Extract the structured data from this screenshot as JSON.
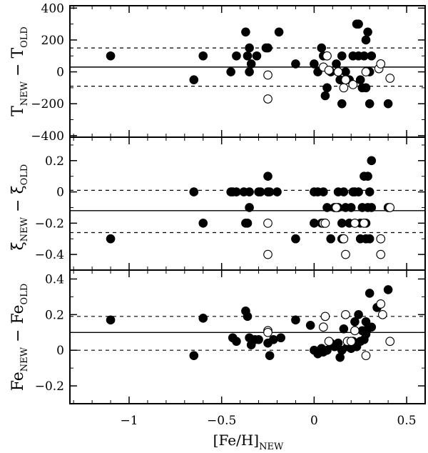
{
  "chart_data": {
    "type": "scatter",
    "xlabel": {
      "main": "[Fe/H]",
      "sub": "NEW"
    },
    "xlim": [
      -1.32,
      0.6
    ],
    "xticks": [
      -1,
      -0.5,
      0,
      0.5
    ],
    "xtick_labels": [
      "−1",
      "−0.5",
      "0",
      "0.5"
    ],
    "panels": [
      {
        "ylabel": {
          "a": "T",
          "a_sub": "NEW",
          "mid": " − T",
          "b_sub": "OLD"
        },
        "ylim": [
          -410,
          415
        ],
        "yticks": [
          -400,
          -200,
          0,
          200,
          400
        ],
        "ytick_labels": [
          "−400",
          "−200",
          "0",
          "200",
          "400"
        ],
        "mean_line": 30,
        "dashed_lines": [
          150,
          -90
        ],
        "filled": [
          [
            -1.1,
            100
          ],
          [
            -0.65,
            -50
          ],
          [
            -0.6,
            100
          ],
          [
            -0.45,
            0
          ],
          [
            -0.42,
            100
          ],
          [
            -0.37,
            250
          ],
          [
            -0.36,
            100
          ],
          [
            -0.35,
            150
          ],
          [
            -0.35,
            0
          ],
          [
            -0.34,
            50
          ],
          [
            -0.31,
            100
          ],
          [
            -0.26,
            150
          ],
          [
            -0.25,
            150
          ],
          [
            -0.19,
            250
          ],
          [
            -0.1,
            50
          ],
          [
            0.0,
            50
          ],
          [
            0.02,
            0
          ],
          [
            0.04,
            150
          ],
          [
            0.05,
            100
          ],
          [
            0.06,
            -150
          ],
          [
            0.07,
            -100
          ],
          [
            0.09,
            0
          ],
          [
            0.12,
            50
          ],
          [
            0.13,
            0
          ],
          [
            0.14,
            -50
          ],
          [
            0.15,
            -200
          ],
          [
            0.15,
            100
          ],
          [
            0.17,
            0
          ],
          [
            0.19,
            -50
          ],
          [
            0.21,
            100
          ],
          [
            0.23,
            300
          ],
          [
            0.24,
            300
          ],
          [
            0.24,
            100
          ],
          [
            0.25,
            -50
          ],
          [
            0.26,
            -100
          ],
          [
            0.27,
            100
          ],
          [
            0.28,
            -100
          ],
          [
            0.28,
            200
          ],
          [
            0.29,
            250
          ],
          [
            0.3,
            0
          ],
          [
            0.3,
            -200
          ],
          [
            0.31,
            100
          ],
          [
            0.4,
            -200
          ]
        ],
        "open": [
          [
            -0.25,
            -20
          ],
          [
            -0.25,
            -170
          ],
          [
            0.05,
            30
          ],
          [
            0.07,
            100
          ],
          [
            0.08,
            10
          ],
          [
            0.13,
            0
          ],
          [
            0.16,
            -100
          ],
          [
            0.17,
            -50
          ],
          [
            0.21,
            -80
          ],
          [
            0.28,
            0
          ],
          [
            0.35,
            20
          ],
          [
            0.36,
            50
          ],
          [
            0.41,
            -40
          ]
        ]
      },
      {
        "ylabel": {
          "a": "ξ",
          "a_sub": "NEW",
          "mid": " − ξ",
          "b_sub": "OLD"
        },
        "ylim": [
          -0.5,
          0.35
        ],
        "yticks": [
          -0.4,
          -0.2,
          0,
          0.2
        ],
        "ytick_labels": [
          "−0.4",
          "−0.2",
          "0",
          "0.2"
        ],
        "mean_line": -0.12,
        "dashed_lines": [
          0.01,
          -0.26
        ],
        "filled": [
          [
            -1.1,
            -0.3
          ],
          [
            -0.65,
            0
          ],
          [
            -0.6,
            -0.2
          ],
          [
            -0.45,
            0
          ],
          [
            -0.44,
            0
          ],
          [
            -0.42,
            0
          ],
          [
            -0.38,
            0
          ],
          [
            -0.37,
            -0.2
          ],
          [
            -0.36,
            -0.2
          ],
          [
            -0.35,
            -0.1
          ],
          [
            -0.35,
            0
          ],
          [
            -0.3,
            0
          ],
          [
            -0.29,
            0
          ],
          [
            -0.25,
            0.1
          ],
          [
            -0.25,
            0
          ],
          [
            -0.24,
            0
          ],
          [
            -0.2,
            0
          ],
          [
            -0.1,
            -0.3
          ],
          [
            0.0,
            -0.2
          ],
          [
            0.0,
            0
          ],
          [
            0.02,
            0
          ],
          [
            0.04,
            -0.2
          ],
          [
            0.05,
            0
          ],
          [
            0.06,
            -0.2
          ],
          [
            0.07,
            -0.1
          ],
          [
            0.09,
            -0.3
          ],
          [
            0.11,
            -0.1
          ],
          [
            0.13,
            0
          ],
          [
            0.13,
            -0.1
          ],
          [
            0.15,
            -0.3
          ],
          [
            0.15,
            -0.2
          ],
          [
            0.16,
            0
          ],
          [
            0.17,
            -0.1
          ],
          [
            0.19,
            -0.2
          ],
          [
            0.2,
            -0.1
          ],
          [
            0.21,
            0
          ],
          [
            0.22,
            0
          ],
          [
            0.24,
            0
          ],
          [
            0.25,
            -0.3
          ],
          [
            0.25,
            -0.2
          ],
          [
            0.26,
            -0.1
          ],
          [
            0.27,
            0.1
          ],
          [
            0.28,
            -0.2
          ],
          [
            0.28,
            -0.3
          ],
          [
            0.29,
            -0.1
          ],
          [
            0.29,
            0.1
          ],
          [
            0.3,
            0
          ],
          [
            0.3,
            -0.3
          ],
          [
            0.31,
            0.2
          ],
          [
            0.31,
            -0.1
          ],
          [
            0.4,
            -0.1
          ]
        ],
        "open": [
          [
            -0.25,
            -0.2
          ],
          [
            -0.25,
            -0.4
          ],
          [
            0.05,
            -0.2
          ],
          [
            0.06,
            -0.2
          ],
          [
            0.12,
            -0.1
          ],
          [
            0.16,
            -0.3
          ],
          [
            0.17,
            -0.4
          ],
          [
            0.22,
            -0.2
          ],
          [
            0.27,
            -0.2
          ],
          [
            0.36,
            -0.4
          ],
          [
            0.36,
            -0.3
          ],
          [
            0.41,
            -0.1
          ]
        ]
      },
      {
        "ylabel": {
          "a": "Fe",
          "a_sub": "NEW",
          "mid": " − Fe",
          "b_sub": "OLD"
        },
        "ylim": [
          -0.3,
          0.45
        ],
        "yticks": [
          -0.2,
          0,
          0.2,
          0.4
        ],
        "ytick_labels": [
          "−0.2",
          "0",
          "0.2",
          "0.4"
        ],
        "mean_line": 0.1,
        "dashed_lines": [
          0.19,
          0.0
        ],
        "filled": [
          [
            -1.1,
            0.17
          ],
          [
            -0.65,
            -0.03
          ],
          [
            -0.6,
            0.18
          ],
          [
            -0.44,
            0.07
          ],
          [
            -0.42,
            0.05
          ],
          [
            -0.37,
            0.22
          ],
          [
            -0.36,
            0.19
          ],
          [
            -0.35,
            0.07
          ],
          [
            -0.34,
            0.03
          ],
          [
            -0.32,
            0.06
          ],
          [
            -0.3,
            0.06
          ],
          [
            -0.25,
            0.04
          ],
          [
            -0.24,
            -0.03
          ],
          [
            -0.22,
            0.06
          ],
          [
            -0.18,
            0.07
          ],
          [
            -0.1,
            0.17
          ],
          [
            -0.02,
            0.14
          ],
          [
            0.0,
            0.0
          ],
          [
            0.02,
            -0.02
          ],
          [
            0.04,
            0.01
          ],
          [
            0.05,
            -0.01
          ],
          [
            0.07,
            0.0
          ],
          [
            0.09,
            0.04
          ],
          [
            0.11,
            0.02
          ],
          [
            0.13,
            0.04
          ],
          [
            0.14,
            -0.04
          ],
          [
            0.15,
            0.0
          ],
          [
            0.16,
            0.12
          ],
          [
            0.18,
            0.02
          ],
          [
            0.19,
            0.03
          ],
          [
            0.2,
            0.01
          ],
          [
            0.21,
            0.05
          ],
          [
            0.22,
            0.16
          ],
          [
            0.23,
            0.02
          ],
          [
            0.24,
            0.2
          ],
          [
            0.25,
            0.05
          ],
          [
            0.26,
            0.11
          ],
          [
            0.27,
            0.06
          ],
          [
            0.28,
            0.09
          ],
          [
            0.28,
            0.16
          ],
          [
            0.29,
            0.12
          ],
          [
            0.3,
            0.32
          ],
          [
            0.31,
            0.13
          ],
          [
            0.34,
            0.24
          ],
          [
            0.4,
            0.34
          ]
        ],
        "open": [
          [
            -0.25,
            0.11
          ],
          [
            -0.25,
            0.1
          ],
          [
            0.05,
            0.13
          ],
          [
            0.06,
            0.19
          ],
          [
            0.08,
            0.05
          ],
          [
            0.17,
            0.2
          ],
          [
            0.18,
            0.05
          ],
          [
            0.2,
            0.05
          ],
          [
            0.22,
            0.11
          ],
          [
            0.28,
            -0.03
          ],
          [
            0.36,
            0.26
          ],
          [
            0.37,
            0.2
          ],
          [
            0.41,
            0.05
          ]
        ]
      }
    ]
  }
}
